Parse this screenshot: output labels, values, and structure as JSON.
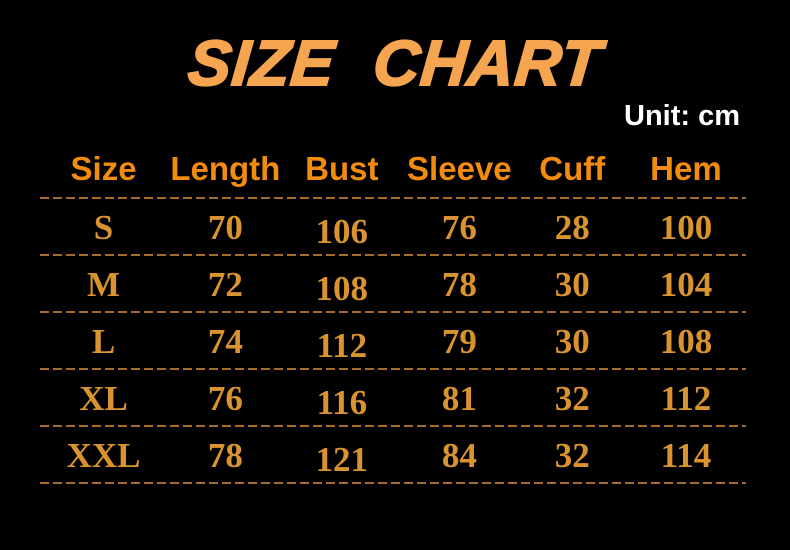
{
  "title": "SIZE CHART",
  "unit_label": "Unit: cm",
  "colors": {
    "background": "#000000",
    "title_orange": "#F5A54F",
    "header_orange": "#F18C0F",
    "value_orange": "#D9942F",
    "divider_orange": "#A86B2E",
    "unit_white": "#FFFFFF"
  },
  "chart_data": {
    "type": "table",
    "title": "SIZE CHART",
    "unit": "cm",
    "columns": [
      "Size",
      "Length",
      "Bust",
      "Sleeve",
      "Cuff",
      "Hem"
    ],
    "rows": [
      [
        "S",
        "70",
        "106",
        "76",
        "28",
        "100"
      ],
      [
        "M",
        "72",
        "108",
        "78",
        "30",
        "104"
      ],
      [
        "L",
        "74",
        "112",
        "79",
        "30",
        "108"
      ],
      [
        "XL",
        "76",
        "116",
        "81",
        "32",
        "112"
      ],
      [
        "XXL",
        "78",
        "121",
        "84",
        "32",
        "114"
      ]
    ]
  }
}
